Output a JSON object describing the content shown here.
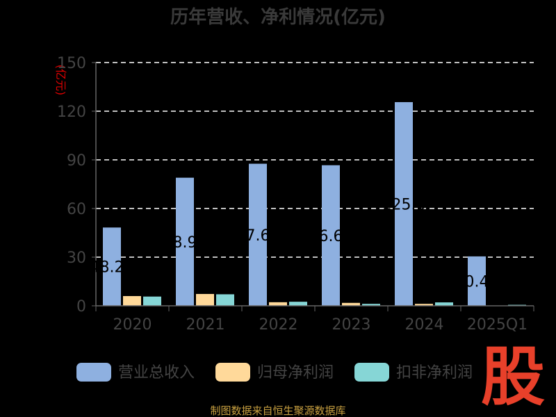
{
  "colors": {
    "background": "#000000",
    "revenue": "#8eb0e0",
    "net_profit": "#ffd99a",
    "deducted_profit": "#86d6d6",
    "grid": "#ffffff",
    "axis": "#666666",
    "ylabel": "#e00000",
    "source": "#c8a040",
    "brand": "#e8402a"
  },
  "footer": {
    "source_text": "制图数据来自恒生聚源数据库",
    "brand_mark": "股"
  },
  "chart_data": {
    "type": "bar",
    "title": "历年营收、净利情况(亿元)",
    "xlabel": "",
    "ylabel": "(亿元)",
    "ylim": [
      0,
      150
    ],
    "yticks": [
      0,
      30,
      60,
      90,
      120,
      150
    ],
    "grid": true,
    "legend_position": "bottom",
    "categories": [
      "2020",
      "2021",
      "2022",
      "2023",
      "2024",
      "2025Q1"
    ],
    "series": [
      {
        "name": "营业总收入",
        "color_key": "revenue",
        "values": [
          48.27,
          78.99,
          87.6,
          86.68,
          125.6,
          30.48
        ],
        "labels": [
          "48.27",
          "78.99",
          "87.60",
          "86.68",
          "125.6",
          "30.48"
        ]
      },
      {
        "name": "归母净利润",
        "color_key": "net_profit",
        "values": [
          6.0,
          7.3,
          2.2,
          1.8,
          1.2,
          0.0
        ]
      },
      {
        "name": "扣非净利润",
        "color_key": "deducted_profit",
        "values": [
          5.7,
          7.1,
          2.5,
          1.2,
          2.1,
          0.6
        ]
      }
    ]
  }
}
